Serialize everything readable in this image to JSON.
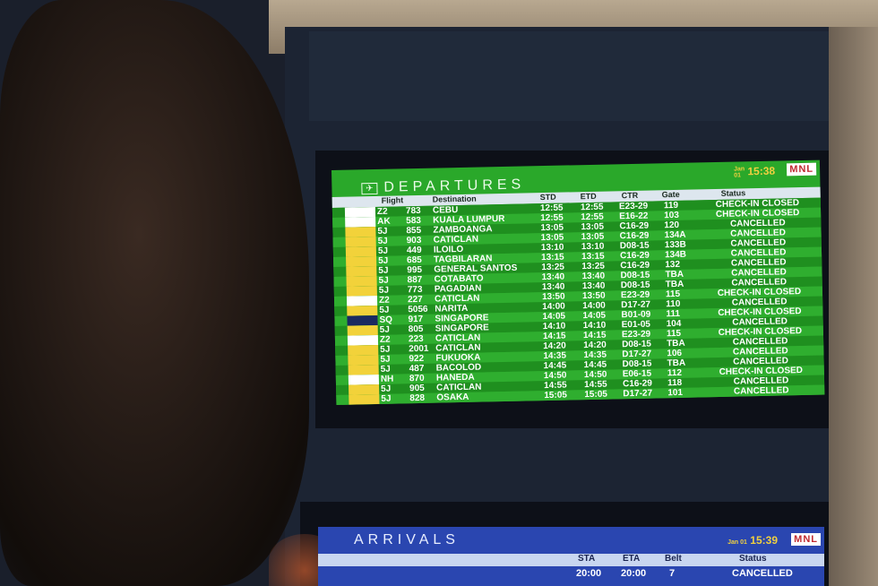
{
  "departures": {
    "title": "DEPARTURES",
    "date_month": "Jan",
    "date_day": "01",
    "time": "15:38",
    "airport_logo": "MNL",
    "columns": [
      "Flight",
      "Destination",
      "STD",
      "ETD",
      "CTR",
      "Gate",
      "Status"
    ],
    "rows": [
      {
        "logo": "AirAsia",
        "code": "Z2",
        "num": "783",
        "dest": "CEBU",
        "std": "12:55",
        "etd": "12:55",
        "ctr": "E23-29",
        "gate": "119",
        "status": "CHECK-IN CLOSED"
      },
      {
        "logo": "AirAsia",
        "code": "AK",
        "num": "583",
        "dest": "KUALA LUMPUR",
        "std": "12:55",
        "etd": "12:55",
        "ctr": "E16-22",
        "gate": "103",
        "status": "CHECK-IN CLOSED"
      },
      {
        "logo": "Cebu Pacific",
        "code": "5J",
        "num": "855",
        "dest": "ZAMBOANGA",
        "std": "13:05",
        "etd": "13:05",
        "ctr": "C16-29",
        "gate": "120",
        "status": "CANCELLED"
      },
      {
        "logo": "Cebu Pacific",
        "code": "5J",
        "num": "903",
        "dest": "CATICLAN",
        "std": "13:05",
        "etd": "13:05",
        "ctr": "C16-29",
        "gate": "134A",
        "status": "CANCELLED"
      },
      {
        "logo": "Cebu Pacific",
        "code": "5J",
        "num": "449",
        "dest": "ILOILO",
        "std": "13:10",
        "etd": "13:10",
        "ctr": "D08-15",
        "gate": "133B",
        "status": "CANCELLED"
      },
      {
        "logo": "Cebu Pacific",
        "code": "5J",
        "num": "685",
        "dest": "TAGBILARAN",
        "std": "13:15",
        "etd": "13:15",
        "ctr": "C16-29",
        "gate": "134B",
        "status": "CANCELLED"
      },
      {
        "logo": "Cebu Pacific",
        "code": "5J",
        "num": "995",
        "dest": "GENERAL SANTOS",
        "std": "13:25",
        "etd": "13:25",
        "ctr": "C16-29",
        "gate": "132",
        "status": "CANCELLED"
      },
      {
        "logo": "Cebu Pacific",
        "code": "5J",
        "num": "887",
        "dest": "COTABATO",
        "std": "13:40",
        "etd": "13:40",
        "ctr": "D08-15",
        "gate": "TBA",
        "status": "CANCELLED"
      },
      {
        "logo": "Cebu Pacific",
        "code": "5J",
        "num": "773",
        "dest": "PAGADIAN",
        "std": "13:40",
        "etd": "13:40",
        "ctr": "D08-15",
        "gate": "TBA",
        "status": "CANCELLED"
      },
      {
        "logo": "AirAsia",
        "code": "Z2",
        "num": "227",
        "dest": "CATICLAN",
        "std": "13:50",
        "etd": "13:50",
        "ctr": "E23-29",
        "gate": "115",
        "status": "CHECK-IN CLOSED"
      },
      {
        "logo": "Cebu Pacific",
        "code": "5J",
        "num": "5056",
        "dest": "NARITA",
        "std": "14:00",
        "etd": "14:00",
        "ctr": "D17-27",
        "gate": "110",
        "status": "CANCELLED"
      },
      {
        "logo": "Singapore Airlines",
        "code": "SQ",
        "num": "917",
        "dest": "SINGAPORE",
        "std": "14:05",
        "etd": "14:05",
        "ctr": "B01-09",
        "gate": "111",
        "status": "CHECK-IN CLOSED"
      },
      {
        "logo": "Cebu Pacific",
        "code": "5J",
        "num": "805",
        "dest": "SINGAPORE",
        "std": "14:10",
        "etd": "14:10",
        "ctr": "E01-05",
        "gate": "104",
        "status": "CANCELLED"
      },
      {
        "logo": "AirAsia",
        "code": "Z2",
        "num": "223",
        "dest": "CATICLAN",
        "std": "14:15",
        "etd": "14:15",
        "ctr": "E23-29",
        "gate": "115",
        "status": "CHECK-IN CLOSED"
      },
      {
        "logo": "Cebu Pacific",
        "code": "5J",
        "num": "2001",
        "dest": "CATICLAN",
        "std": "14:20",
        "etd": "14:20",
        "ctr": "D08-15",
        "gate": "TBA",
        "status": "CANCELLED"
      },
      {
        "logo": "Cebu Pacific",
        "code": "5J",
        "num": "922",
        "dest": "FUKUOKA",
        "std": "14:35",
        "etd": "14:35",
        "ctr": "D17-27",
        "gate": "106",
        "status": "CANCELLED"
      },
      {
        "logo": "Cebu Pacific",
        "code": "5J",
        "num": "487",
        "dest": "BACOLOD",
        "std": "14:45",
        "etd": "14:45",
        "ctr": "D08-15",
        "gate": "TBA",
        "status": "CANCELLED"
      },
      {
        "logo": "ANA",
        "code": "NH",
        "num": "870",
        "dest": "HANEDA",
        "std": "14:50",
        "etd": "14:50",
        "ctr": "E06-15",
        "gate": "112",
        "status": "CHECK-IN CLOSED"
      },
      {
        "logo": "Cebu Pacific",
        "code": "5J",
        "num": "905",
        "dest": "CATICLAN",
        "std": "14:55",
        "etd": "14:55",
        "ctr": "C16-29",
        "gate": "118",
        "status": "CANCELLED"
      },
      {
        "logo": "Cebu Pacific",
        "code": "5J",
        "num": "828",
        "dest": "OSAKA",
        "std": "15:05",
        "etd": "15:05",
        "ctr": "D17-27",
        "gate": "101",
        "status": "CANCELLED"
      }
    ]
  },
  "arrivals": {
    "title": "ARRIVALS",
    "date_month": "Jan",
    "date_day": "01",
    "time": "15:39",
    "airport_logo": "MNL",
    "columns": [
      "STA",
      "ETA",
      "Belt",
      "Status"
    ],
    "rows": [
      {
        "sta": "20:00",
        "eta": "20:00",
        "belt": "7",
        "status": "CANCELLED"
      }
    ]
  },
  "colors": {
    "departures_bg": "#2aa82a",
    "arrivals_bg": "#2a46b0",
    "clock": "#f0d040",
    "airasia": "#d42a2a",
    "cebu_pacific": "#f2d23a"
  }
}
